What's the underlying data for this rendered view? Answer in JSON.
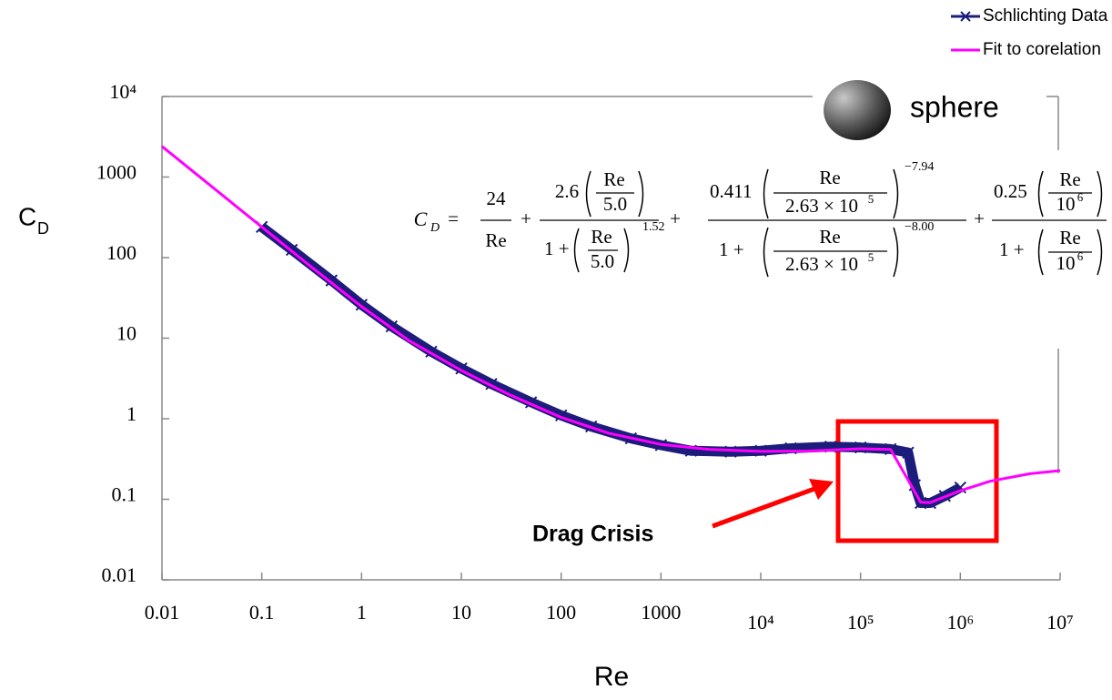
{
  "chart_data": {
    "type": "line",
    "x_label": "Re",
    "y_label": "C",
    "y_label_sub": "D",
    "log_x": true,
    "log_y": true,
    "grid": false,
    "legend": "top-right",
    "xlim": [
      0.01,
      10000000
    ],
    "ylim": [
      0.01,
      10000
    ],
    "xticks": [
      0.01,
      0.1,
      1,
      10,
      100,
      1000,
      {
        "value": 10000,
        "label": "10⁴"
      },
      {
        "value": 100000,
        "label": "10⁵"
      },
      {
        "value": 1000000,
        "label": "10⁶"
      },
      {
        "value": 10000000,
        "label": "10⁷"
      }
    ],
    "yticks": [
      0.01,
      0.1,
      1,
      10,
      100,
      1000,
      {
        "value": 10000,
        "label": "10⁴"
      }
    ],
    "series": [
      {
        "name": "Schlichting Data",
        "color": "#1c1c7c",
        "marker": "x",
        "x": [
          0.1,
          0.2,
          0.5,
          1,
          2,
          5,
          10,
          20,
          50,
          100,
          200,
          500,
          1000,
          2000,
          5000,
          10000,
          20000,
          50000,
          100000,
          200000,
          300000,
          350000,
          400000,
          500000,
          700000,
          1000000
        ],
        "values": [
          240,
          125,
          52,
          26,
          14,
          6.8,
          4.2,
          2.7,
          1.6,
          1.1,
          0.8,
          0.57,
          0.47,
          0.4,
          0.39,
          0.4,
          0.43,
          0.45,
          0.44,
          0.42,
          0.38,
          0.15,
          0.09,
          0.09,
          0.11,
          0.14
        ]
      },
      {
        "name": "Fit to corelation",
        "color": "#ff00ff",
        "x": [
          0.01,
          0.1,
          0.3,
          1,
          3,
          10,
          30,
          100,
          300,
          1000,
          3000,
          10000,
          30000,
          100000,
          200000,
          300000,
          400000,
          500000,
          1000000,
          2000000,
          5000000,
          10000000
        ],
        "values": [
          2400,
          240,
          80,
          24.7,
          9.3,
          3.97,
          2.0,
          1.04,
          0.66,
          0.48,
          0.417,
          0.393,
          0.397,
          0.424,
          0.415,
          0.173,
          0.092,
          0.091,
          0.128,
          0.168,
          0.208,
          0.227
        ]
      }
    ],
    "annotations": [
      {
        "text": "sphere"
      },
      {
        "text": "Drag Crisis"
      }
    ],
    "equation": {
      "lhs": "C",
      "lhs_sub": "D",
      "eq": "=",
      "plus": "+",
      "t1": {
        "num": "24",
        "den": "Re"
      },
      "t2": {
        "coef": "2.6",
        "re": "Re",
        "ref": "5.0",
        "one": "1 +",
        "exp": "1.52"
      },
      "t3": {
        "coef": "0.411",
        "re": "Re",
        "ref": "2.63 × 10",
        "ref_exp": "5",
        "num_exp": "−7.94",
        "one": "1 +",
        "den_exp": "−8.00"
      },
      "t4": {
        "coef": "0.25",
        "re": "Re",
        "ref": "10",
        "ref_exp": "6",
        "one": "1 +"
      }
    }
  }
}
